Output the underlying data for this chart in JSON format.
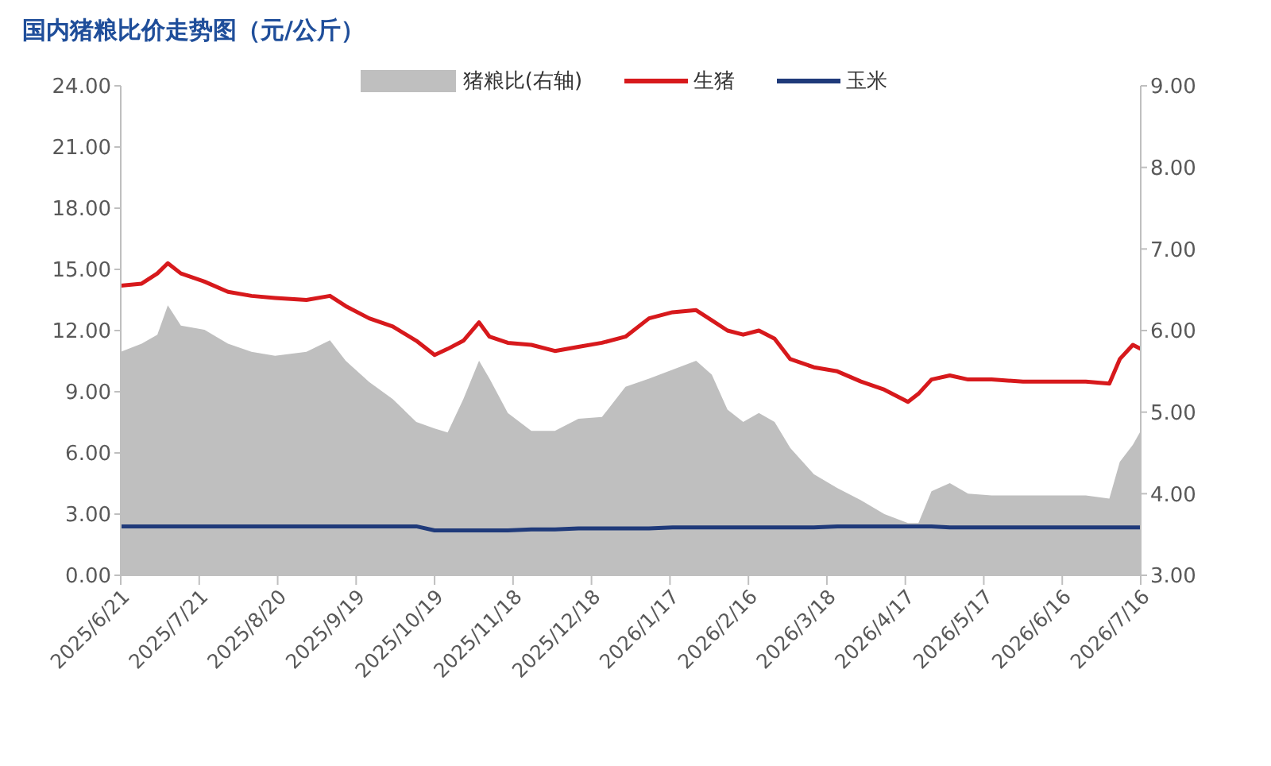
{
  "chart_data": {
    "type": "line",
    "title": "国内猪粮比价走势图（元/公斤）",
    "x": [
      "2025-06-21",
      "2025-06-29",
      "2025-07-05",
      "2025-07-09",
      "2025-07-14",
      "2025-07-23",
      "2025-08-01",
      "2025-08-10",
      "2025-08-19",
      "2025-08-31",
      "2025-09-09",
      "2025-09-15",
      "2025-09-24",
      "2025-10-03",
      "2025-10-12",
      "2025-10-19",
      "2025-10-24",
      "2025-10-30",
      "2025-11-05",
      "2025-11-09",
      "2025-11-16",
      "2025-11-25",
      "2025-12-04",
      "2025-12-13",
      "2025-12-22",
      "2025-12-31",
      "2026-01-09",
      "2026-01-18",
      "2026-01-27",
      "2026-02-02",
      "2026-02-08",
      "2026-02-14",
      "2026-02-20",
      "2026-02-26",
      "2026-03-04",
      "2026-03-13",
      "2026-03-22",
      "2026-03-31",
      "2026-04-09",
      "2026-04-18",
      "2026-04-22",
      "2026-04-27",
      "2026-05-04",
      "2026-05-11",
      "2026-05-20",
      "2026-06-01",
      "2026-06-13",
      "2026-06-25",
      "2026-07-04",
      "2026-07-08",
      "2026-07-13",
      "2026-07-16"
    ],
    "series": [
      {
        "name": "猪粮比(右轴)",
        "type": "area",
        "axis": "y2",
        "color": "#bfbfbf",
        "values": [
          5.74,
          5.84,
          5.95,
          6.31,
          6.06,
          6.01,
          5.84,
          5.74,
          5.69,
          5.74,
          5.88,
          5.63,
          5.37,
          5.16,
          4.88,
          4.8,
          4.75,
          5.16,
          5.63,
          5.41,
          4.99,
          4.77,
          4.77,
          4.92,
          4.94,
          5.31,
          5.41,
          5.52,
          5.63,
          5.46,
          5.03,
          4.88,
          4.99,
          4.88,
          4.56,
          4.24,
          4.07,
          3.92,
          3.75,
          3.64,
          3.64,
          4.03,
          4.13,
          4.0,
          3.98,
          3.98,
          3.98,
          3.98,
          3.94,
          4.39,
          4.6,
          4.77
        ]
      },
      {
        "name": "生猪",
        "color": "#d7191c",
        "values": [
          14.2,
          14.3,
          14.8,
          15.3,
          14.8,
          14.4,
          13.9,
          13.7,
          13.6,
          13.5,
          13.7,
          13.2,
          12.6,
          12.2,
          11.5,
          10.8,
          11.1,
          11.5,
          12.4,
          11.7,
          11.4,
          11.3,
          11.0,
          11.2,
          11.4,
          11.7,
          12.6,
          12.9,
          13.0,
          12.5,
          12.0,
          11.8,
          12.0,
          11.6,
          10.6,
          10.2,
          10.0,
          9.5,
          9.1,
          8.5,
          8.9,
          9.6,
          9.8,
          9.6,
          9.6,
          9.5,
          9.5,
          9.5,
          9.4,
          10.6,
          11.3,
          11.1
        ]
      },
      {
        "name": "玉米",
        "color": "#1f3a7a",
        "values": [
          2.4,
          2.4,
          2.4,
          2.4,
          2.4,
          2.4,
          2.4,
          2.4,
          2.4,
          2.4,
          2.4,
          2.4,
          2.4,
          2.4,
          2.4,
          2.2,
          2.2,
          2.2,
          2.2,
          2.2,
          2.2,
          2.25,
          2.25,
          2.3,
          2.3,
          2.3,
          2.3,
          2.35,
          2.35,
          2.35,
          2.35,
          2.35,
          2.35,
          2.35,
          2.35,
          2.35,
          2.4,
          2.4,
          2.4,
          2.4,
          2.4,
          2.4,
          2.35,
          2.35,
          2.35,
          2.35,
          2.35,
          2.35,
          2.35,
          2.35,
          2.35,
          2.35
        ]
      }
    ],
    "xlim": [
      "2025-06-21",
      "2026-07-16"
    ],
    "xticks": [
      {
        "value": "2025-06-21",
        "label": "2025/6/21"
      },
      {
        "value": "2025-07-21",
        "label": "2025/7/21"
      },
      {
        "value": "2025-08-20",
        "label": "2025/8/20"
      },
      {
        "value": "2025-09-19",
        "label": "2025/9/19"
      },
      {
        "value": "2025-10-19",
        "label": "2025/10/19"
      },
      {
        "value": "2025-11-18",
        "label": "2025/11/18"
      },
      {
        "value": "2025-12-18",
        "label": "2025/12/18"
      },
      {
        "value": "2026-01-17",
        "label": "2026/1/17"
      },
      {
        "value": "2026-02-16",
        "label": "2026/2/16"
      },
      {
        "value": "2026-03-18",
        "label": "2026/3/18"
      },
      {
        "value": "2026-04-17",
        "label": "2026/4/17"
      },
      {
        "value": "2026-05-17",
        "label": "2026/5/17"
      },
      {
        "value": "2026-06-16",
        "label": "2026/6/16"
      },
      {
        "value": "2026-07-16",
        "label": "2026/7/16"
      }
    ],
    "ylim": [
      0,
      24
    ],
    "yticks": [
      {
        "value": 0,
        "label": "0.00"
      },
      {
        "value": 3,
        "label": "3.00"
      },
      {
        "value": 6,
        "label": "6.00"
      },
      {
        "value": 9,
        "label": "9.00"
      },
      {
        "value": 12,
        "label": "12.00"
      },
      {
        "value": 15,
        "label": "15.00"
      },
      {
        "value": 18,
        "label": "18.00"
      },
      {
        "value": 21,
        "label": "21.00"
      },
      {
        "value": 24,
        "label": "24.00"
      }
    ],
    "y2lim": [
      3,
      9
    ],
    "y2ticks": [
      {
        "value": 3,
        "label": "3.00"
      },
      {
        "value": 4,
        "label": "4.00"
      },
      {
        "value": 5,
        "label": "5.00"
      },
      {
        "value": 6,
        "label": "6.00"
      },
      {
        "value": 7,
        "label": "7.00"
      },
      {
        "value": 8,
        "label": "8.00"
      },
      {
        "value": 9,
        "label": "9.00"
      }
    ],
    "grid": false,
    "legend": "top",
    "marker": "none",
    "line_style": "solid"
  }
}
